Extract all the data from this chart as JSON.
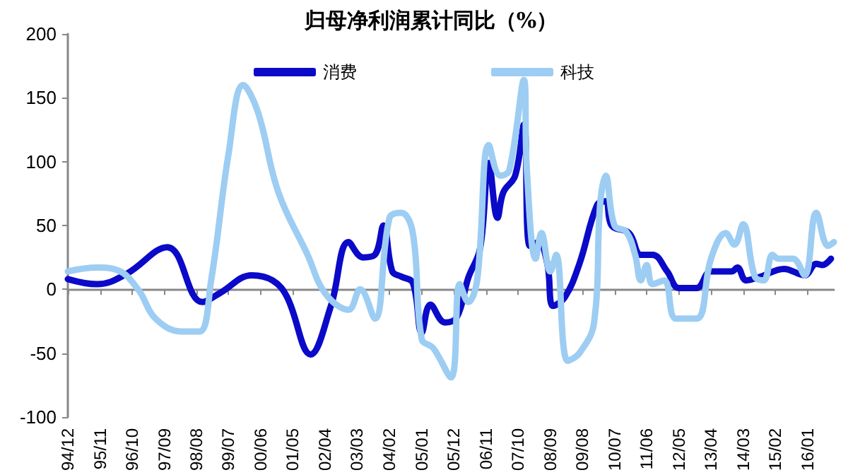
{
  "chart_data": {
    "type": "line",
    "title": "归母净利润累计同比（%）",
    "xlim": [
      "1994-12",
      "2016-10"
    ],
    "xticks": [
      {
        "value": "1994-12",
        "label": "94/12"
      },
      {
        "value": "1995-11",
        "label": "95/11"
      },
      {
        "value": "1996-10",
        "label": "96/10"
      },
      {
        "value": "1997-09",
        "label": "97/09"
      },
      {
        "value": "1998-08",
        "label": "98/08"
      },
      {
        "value": "1999-07",
        "label": "99/07"
      },
      {
        "value": "2000-06",
        "label": "00/06"
      },
      {
        "value": "2001-05",
        "label": "01/05"
      },
      {
        "value": "2002-04",
        "label": "02/04"
      },
      {
        "value": "2003-03",
        "label": "03/03"
      },
      {
        "value": "2004-02",
        "label": "04/02"
      },
      {
        "value": "2005-01",
        "label": "05/01"
      },
      {
        "value": "2005-12",
        "label": "05/12"
      },
      {
        "value": "2006-11",
        "label": "06/11"
      },
      {
        "value": "2007-10",
        "label": "07/10"
      },
      {
        "value": "2008-09",
        "label": "08/09"
      },
      {
        "value": "2009-08",
        "label": "09/08"
      },
      {
        "value": "2010-07",
        "label": "10/07"
      },
      {
        "value": "2011-06",
        "label": "11/06"
      },
      {
        "value": "2012-05",
        "label": "12/05"
      },
      {
        "value": "2013-04",
        "label": "13/04"
      },
      {
        "value": "2014-03",
        "label": "14/03"
      },
      {
        "value": "2015-02",
        "label": "15/02"
      },
      {
        "value": "2016-01",
        "label": "16/01"
      }
    ],
    "ylim": [
      -100,
      200
    ],
    "yticks": [
      -100,
      -50,
      0,
      50,
      100,
      150,
      200
    ],
    "legend": "top",
    "marker": "none",
    "line_style": "solid",
    "series": [
      {
        "name": "消费",
        "color": "#0a0ac8",
        "x": [
          "1994-12",
          "1995-10",
          "1996-08",
          "1997-10",
          "1998-10",
          "1999-04",
          "2000-03",
          "2000-10",
          "2001-03",
          "2001-11",
          "2002-06",
          "2002-12",
          "2003-05",
          "2003-09",
          "2003-12",
          "2004-03",
          "2004-06",
          "2004-10",
          "2005-01",
          "2005-04",
          "2005-09",
          "2006-01",
          "2006-05",
          "2006-09",
          "2006-12",
          "2007-03",
          "2007-05",
          "2007-09",
          "2007-12",
          "2008-02",
          "2008-05",
          "2008-08",
          "2008-10",
          "2009-02",
          "2009-07",
          "2010-01",
          "2010-04",
          "2010-06",
          "2010-12",
          "2011-04",
          "2011-08",
          "2012-01",
          "2012-05",
          "2012-11",
          "2013-04",
          "2013-11",
          "2014-01",
          "2014-04",
          "2014-09",
          "2015-05",
          "2015-12",
          "2016-04",
          "2016-06",
          "2016-09"
        ],
        "values": [
          8,
          4,
          12,
          33,
          -10,
          -3,
          11,
          7,
          -6,
          -51,
          -13,
          37,
          25,
          27,
          50,
          14,
          10,
          5,
          -34,
          -12,
          -26,
          -22,
          9,
          32,
          99,
          56,
          76,
          89,
          129,
          34,
          37,
          20,
          -13,
          -6,
          20,
          66,
          69,
          50,
          44,
          27,
          27,
          14,
          1,
          1,
          14,
          14,
          17,
          7,
          10,
          16,
          11,
          20,
          19,
          24
        ]
      },
      {
        "name": "科技",
        "color": "#9dcdf2",
        "x": [
          "1994-12",
          "1995-10",
          "1996-05",
          "1996-12",
          "1997-06",
          "1998-03",
          "1998-09",
          "1999-01",
          "1999-07",
          "1999-12",
          "2000-05",
          "2000-12",
          "2001-10",
          "2002-04",
          "2002-12",
          "2003-04",
          "2003-09",
          "2004-02",
          "2004-06",
          "2004-10",
          "2005-01",
          "2005-05",
          "2005-11",
          "2006-02",
          "2006-05",
          "2006-08",
          "2006-12",
          "2007-04",
          "2007-07",
          "2007-12",
          "2008-01",
          "2008-04",
          "2008-06",
          "2008-09",
          "2008-11",
          "2009-03",
          "2009-07",
          "2009-12",
          "2010-02",
          "2010-04",
          "2010-07",
          "2010-11",
          "2011-02",
          "2011-04",
          "2011-06",
          "2011-08",
          "2011-12",
          "2012-04",
          "2012-11",
          "2013-04",
          "2013-09",
          "2013-12",
          "2014-03",
          "2014-07",
          "2014-10",
          "2015-01",
          "2015-03",
          "2015-08",
          "2015-12",
          "2016-04",
          "2016-08",
          "2016-10"
        ],
        "values": [
          14,
          17,
          15,
          0,
          -23,
          -33,
          -33,
          7,
          106,
          160,
          139,
          76,
          27,
          -3,
          -16,
          0,
          -23,
          56,
          60,
          44,
          -39,
          -46,
          -69,
          4,
          -10,
          7,
          113,
          89,
          93,
          164,
          93,
          24,
          44,
          14,
          27,
          -56,
          -50,
          -26,
          66,
          89,
          50,
          45,
          27,
          7,
          19,
          4,
          7,
          -23,
          -23,
          24,
          44,
          35,
          51,
          10,
          7,
          27,
          24,
          24,
          11,
          60,
          34,
          37
        ]
      }
    ]
  }
}
